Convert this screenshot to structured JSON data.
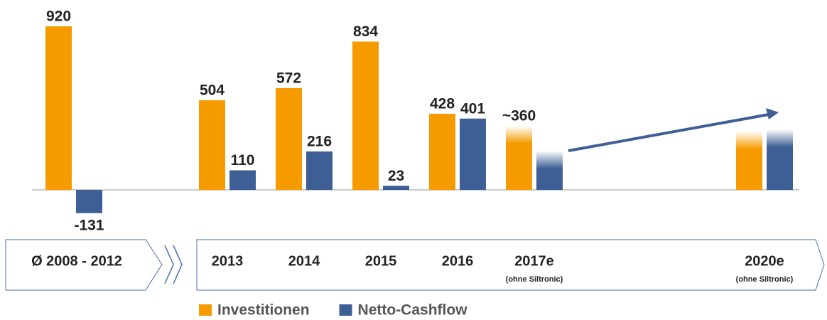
{
  "chart_data": {
    "type": "bar",
    "categories": [
      "Ø 2008 - 2012",
      null,
      "2013",
      "2014",
      "2015",
      "2016",
      "2017e",
      null,
      null,
      "2020e"
    ],
    "category_notes": [
      null,
      null,
      null,
      null,
      null,
      null,
      "(ohne Siltronic)",
      null,
      null,
      "(ohne Siltronic)"
    ],
    "series": [
      {
        "name": "Investitionen",
        "color": "#f59b00",
        "values": [
          920,
          null,
          504,
          572,
          834,
          428,
          360,
          null,
          null,
          330
        ],
        "value_labels": [
          "920",
          null,
          "504",
          "572",
          "834",
          "428",
          "~360",
          null,
          null,
          null
        ]
      },
      {
        "name": "Netto-Cashflow",
        "color": "#3d5f96",
        "values": [
          -131,
          null,
          110,
          216,
          23,
          401,
          220,
          null,
          null,
          340
        ],
        "value_labels": [
          "-131",
          null,
          "110",
          "216",
          "23",
          "401",
          null,
          null,
          null,
          null
        ]
      }
    ],
    "ylim": [
      -200,
      960
    ]
  }
}
